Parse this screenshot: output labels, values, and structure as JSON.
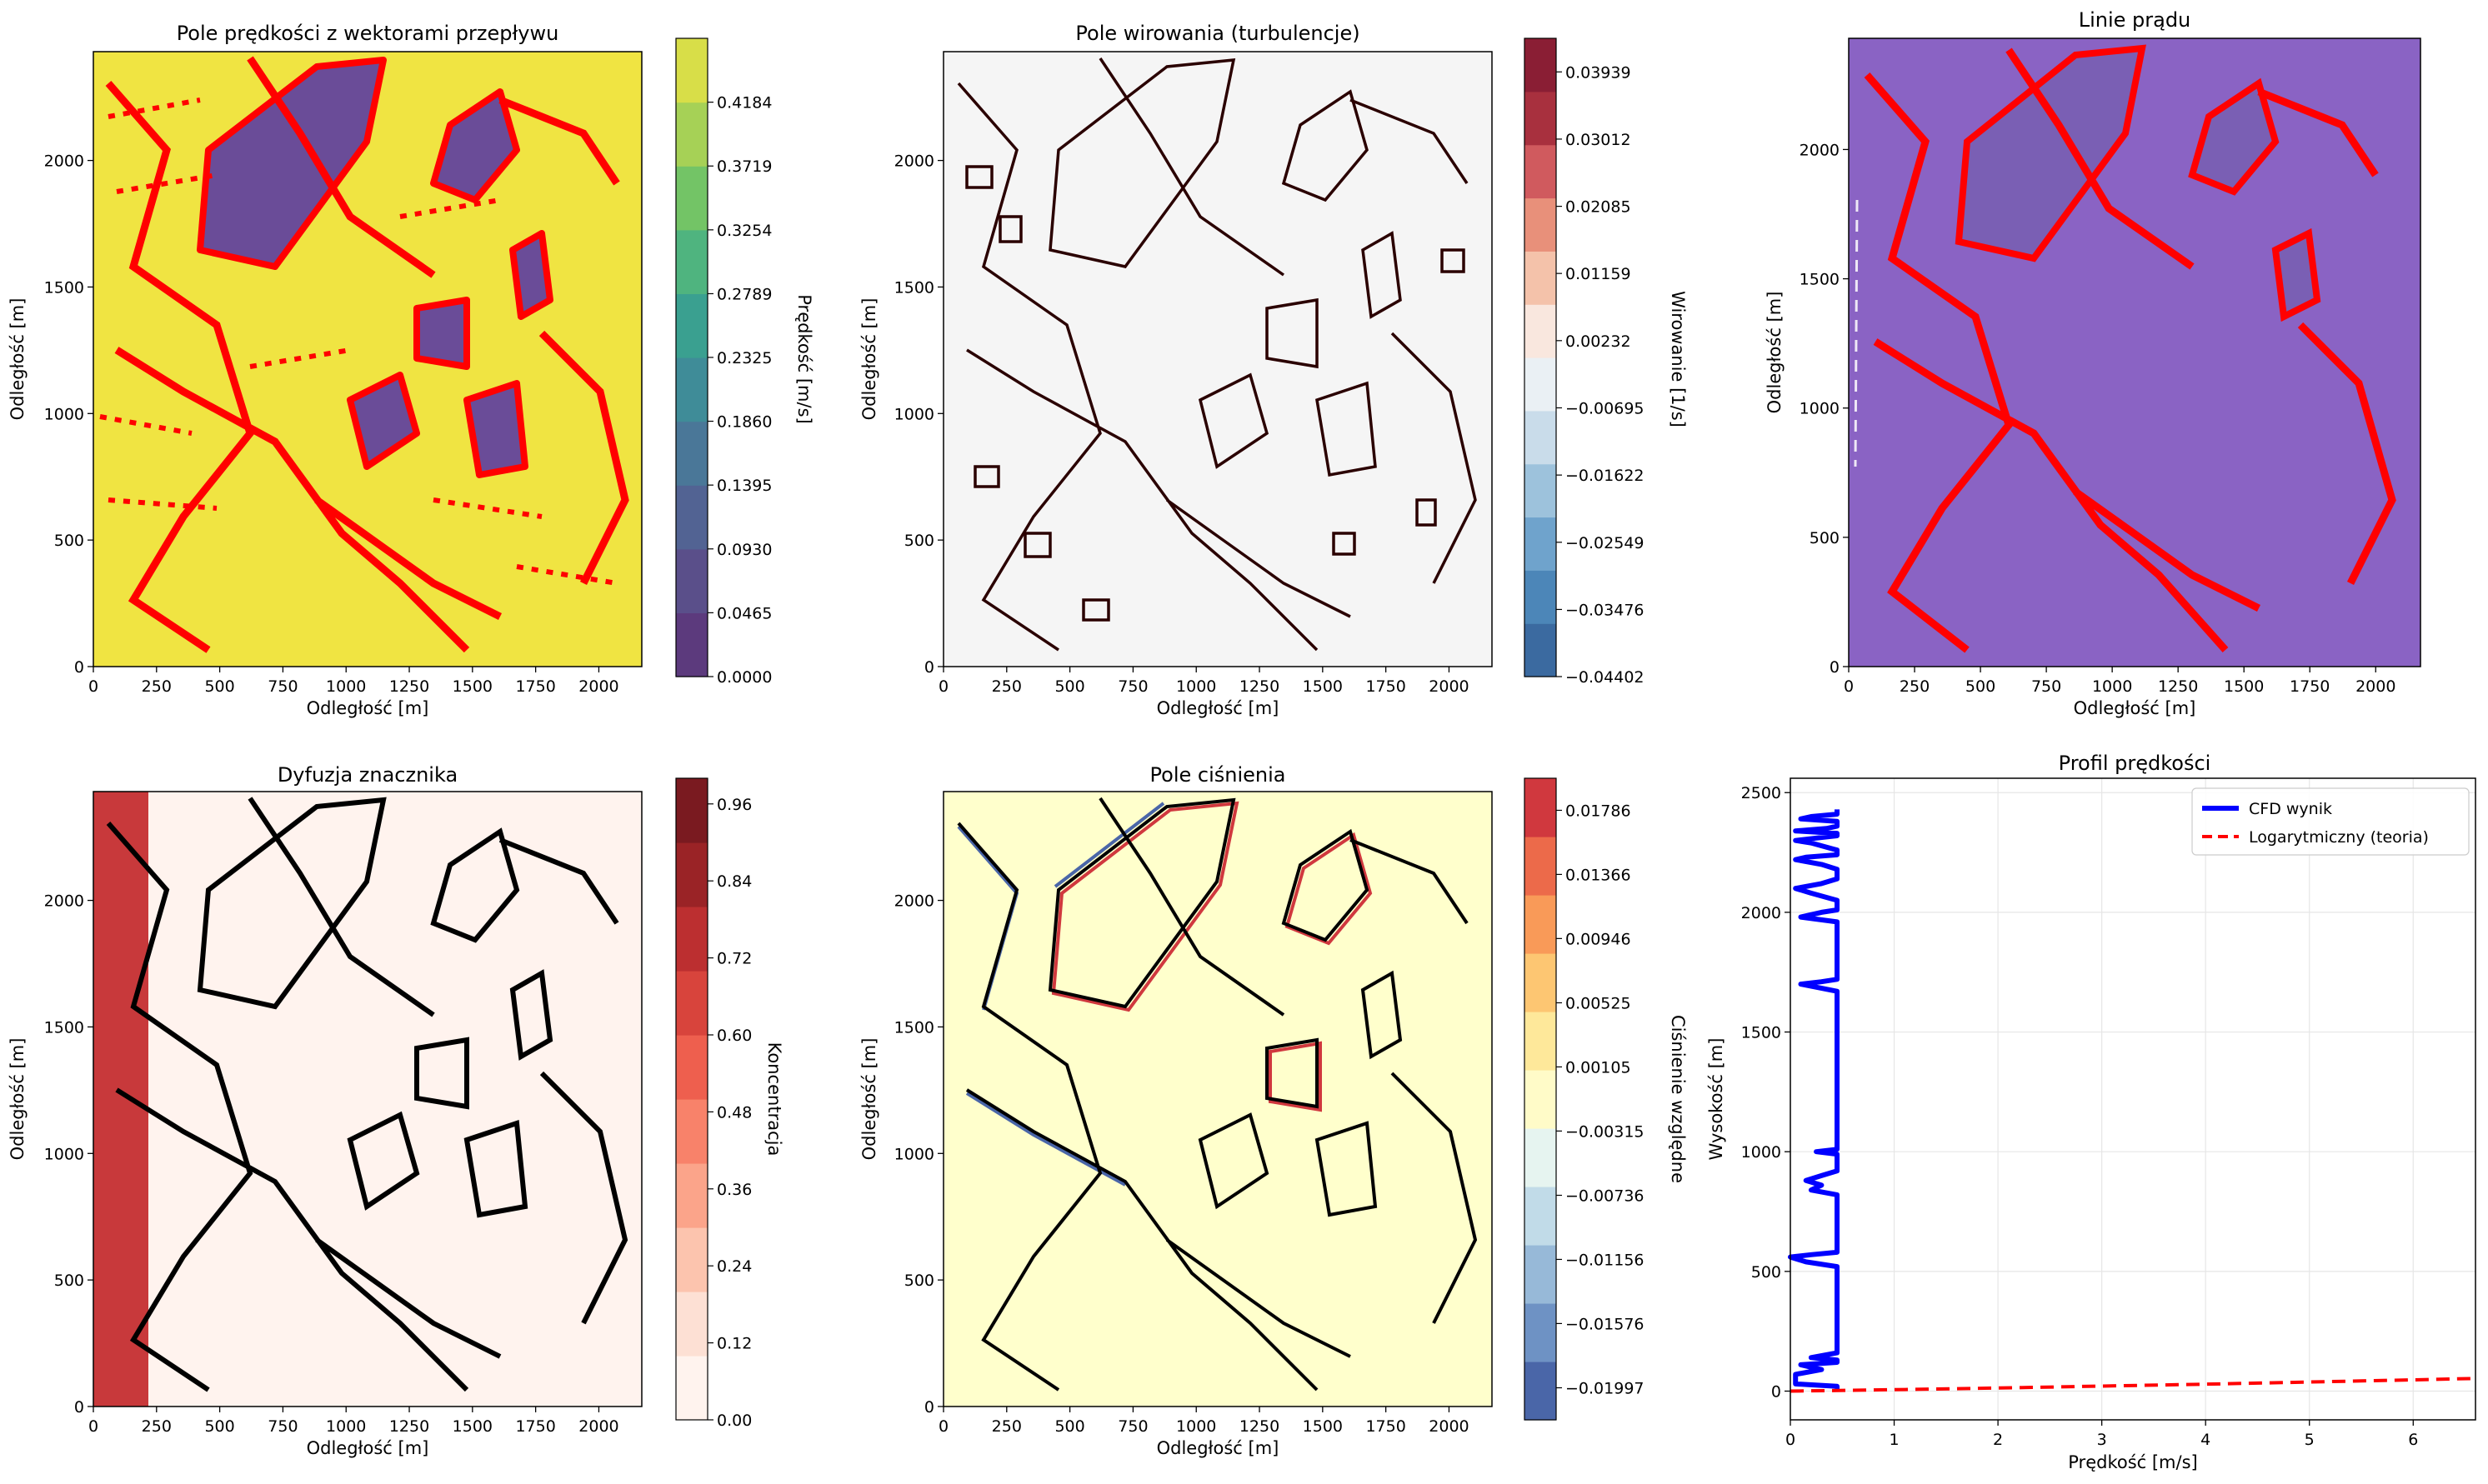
{
  "panels": {
    "velocity": {
      "title": "Pole prędkości z wektorami przepływu",
      "xlabel": "Odległość [m]",
      "ylabel": "Odległość [m]",
      "xticks": [
        "0",
        "250",
        "500",
        "750",
        "1000",
        "1250",
        "1500",
        "1750",
        "2000"
      ],
      "yticks": [
        "0",
        "500",
        "1000",
        "1500",
        "2000"
      ],
      "colorbar": {
        "label": "Prędkość [m/s]",
        "ticks": [
          "0.0000",
          "0.0465",
          "0.0930",
          "0.1395",
          "0.1860",
          "0.2325",
          "0.2789",
          "0.3254",
          "0.3719",
          "0.4184"
        ],
        "colors": [
          "#5c3a7d",
          "#5a4f8a",
          "#526393",
          "#4a7798",
          "#3f8c98",
          "#3aa090",
          "#4fb47f",
          "#73c466",
          "#a6d156",
          "#d8de48"
        ]
      },
      "background_color": "#f0e442",
      "overlay_color": "#ff0000"
    },
    "vorticity": {
      "title": "Pole wirowania (turbulencje)",
      "xlabel": "Odległość [m]",
      "ylabel": "Odległość [m]",
      "xticks": [
        "0",
        "250",
        "500",
        "750",
        "1000",
        "1250",
        "1500",
        "1750",
        "2000"
      ],
      "yticks": [
        "0",
        "500",
        "1000",
        "1500",
        "2000"
      ],
      "colorbar": {
        "label": "Wirowanie [1/s]",
        "ticks": [
          "−0.04402",
          "−0.03476",
          "−0.02549",
          "−0.01622",
          "−0.00695",
          "0.00232",
          "0.01159",
          "0.02085",
          "0.03012",
          "0.03939"
        ],
        "colors": [
          "#3b6aa0",
          "#4c86b8",
          "#6fa3cc",
          "#9dc2dc",
          "#c9dcea",
          "#eaf0f4",
          "#f9e7de",
          "#f4c2aa",
          "#e8907a",
          "#d05a5e",
          "#a8303e",
          "#8a1e34"
        ]
      },
      "background_color": "#f5f5f5",
      "overlay_color": "#2a0000"
    },
    "streamlines": {
      "title": "Linie prądu",
      "xlabel": "Odległość [m]",
      "ylabel": "Odległość [m]",
      "xticks": [
        "0",
        "250",
        "500",
        "750",
        "1000",
        "1250",
        "1500",
        "1750",
        "2000"
      ],
      "yticks": [
        "0",
        "500",
        "1000",
        "1500",
        "2000"
      ],
      "background_color": "#8a63c4",
      "overlay_color": "#ff0000"
    },
    "tracer": {
      "title": "Dyfuzja znacznika",
      "xlabel": "Odległość [m]",
      "ylabel": "Odległość [m]",
      "xticks": [
        "0",
        "250",
        "500",
        "750",
        "1000",
        "1250",
        "1500",
        "1750",
        "2000"
      ],
      "yticks": [
        "0",
        "500",
        "1000",
        "1500",
        "2000"
      ],
      "colorbar": {
        "label": "Koncentracja",
        "ticks": [
          "0.00",
          "0.12",
          "0.24",
          "0.36",
          "0.48",
          "0.60",
          "0.72",
          "0.84",
          "0.96"
        ],
        "colors": [
          "#fff3ee",
          "#fde0d4",
          "#fcc4ae",
          "#fba48a",
          "#f8826a",
          "#ee5f4e",
          "#d8443c",
          "#bc2f30",
          "#9a2326",
          "#7a1a20"
        ]
      },
      "background_color": "#fff3ee",
      "plume_color": "#c8393b",
      "overlay_color": "#000000"
    },
    "pressure": {
      "title": "Pole ciśnienia",
      "xlabel": "Odległość [m]",
      "ylabel": "Odległość [m]",
      "xticks": [
        "0",
        "250",
        "500",
        "750",
        "1000",
        "1250",
        "1500",
        "1750",
        "2000"
      ],
      "yticks": [
        "0",
        "500",
        "1000",
        "1500",
        "2000"
      ],
      "colorbar": {
        "label": "Ciśnienie względne",
        "ticks": [
          "−0.01997",
          "−0.01576",
          "−0.01156",
          "−0.00736",
          "−0.00315",
          "0.00105",
          "0.00525",
          "0.00946",
          "0.01366",
          "0.01786"
        ],
        "colors": [
          "#4a66a8",
          "#6e92c4",
          "#97b9d8",
          "#c1dbe8",
          "#e6f4f0",
          "#fffbc8",
          "#fee89a",
          "#fdc672",
          "#f99a58",
          "#ec6a4a",
          "#d0383e"
        ]
      },
      "background_color": "#ffffcc",
      "overlay_color": "#000000"
    }
  },
  "chart_data": {
    "type": "line",
    "title": "Profil prędkości",
    "xlabel": "Prędkość [m/s]",
    "ylabel": "Wysokość [m]",
    "xlim": [
      0,
      6.6
    ],
    "ylim": [
      -120,
      2560
    ],
    "xticks": [
      "0",
      "1",
      "2",
      "3",
      "4",
      "5",
      "6"
    ],
    "yticks": [
      "0",
      "500",
      "1000",
      "1500",
      "2000",
      "2500"
    ],
    "grid": true,
    "legend_position": "top-right",
    "series": [
      {
        "name": "CFD wynik",
        "color": "#0000ff",
        "style": "solid",
        "points": [
          [
            0.45,
            0
          ],
          [
            0.45,
            20
          ],
          [
            0.05,
            30
          ],
          [
            0.05,
            70
          ],
          [
            0.3,
            90
          ],
          [
            0.1,
            110
          ],
          [
            0.45,
            120
          ],
          [
            0.45,
            130
          ],
          [
            0.2,
            140
          ],
          [
            0.45,
            160
          ],
          [
            0.45,
            520
          ],
          [
            0.15,
            540
          ],
          [
            0.0,
            560
          ],
          [
            0.2,
            570
          ],
          [
            0.45,
            580
          ],
          [
            0.45,
            820
          ],
          [
            0.2,
            840
          ],
          [
            0.3,
            860
          ],
          [
            0.15,
            880
          ],
          [
            0.3,
            900
          ],
          [
            0.45,
            920
          ],
          [
            0.45,
            990
          ],
          [
            0.25,
            1000
          ],
          [
            0.45,
            1010
          ],
          [
            0.45,
            1670
          ],
          [
            0.1,
            1700
          ],
          [
            0.3,
            1710
          ],
          [
            0.45,
            1720
          ],
          [
            0.45,
            1960
          ],
          [
            0.1,
            1980
          ],
          [
            0.3,
            2000
          ],
          [
            0.45,
            2010
          ],
          [
            0.45,
            2050
          ],
          [
            0.2,
            2080
          ],
          [
            0.05,
            2100
          ],
          [
            0.3,
            2120
          ],
          [
            0.45,
            2140
          ],
          [
            0.45,
            2180
          ],
          [
            0.3,
            2200
          ],
          [
            0.05,
            2220
          ],
          [
            0.15,
            2230
          ],
          [
            0.45,
            2240
          ],
          [
            0.45,
            2260
          ],
          [
            0.2,
            2290
          ],
          [
            0.05,
            2300
          ],
          [
            0.25,
            2310
          ],
          [
            0.45,
            2320
          ],
          [
            0.45,
            2330
          ],
          [
            0.05,
            2340
          ],
          [
            0.35,
            2350
          ],
          [
            0.45,
            2360
          ],
          [
            0.45,
            2380
          ],
          [
            0.1,
            2390
          ],
          [
            0.2,
            2400
          ],
          [
            0.45,
            2410
          ],
          [
            0.45,
            2430
          ]
        ]
      },
      {
        "name": "Logarytmiczny (teoria)",
        "color": "#ff0000",
        "style": "dashed",
        "points": [
          [
            0.0,
            0
          ],
          [
            1.0,
            6
          ],
          [
            2.0,
            13
          ],
          [
            3.0,
            21
          ],
          [
            4.0,
            29
          ],
          [
            5.0,
            38
          ],
          [
            6.0,
            47
          ],
          [
            6.6,
            53
          ]
        ]
      }
    ]
  }
}
